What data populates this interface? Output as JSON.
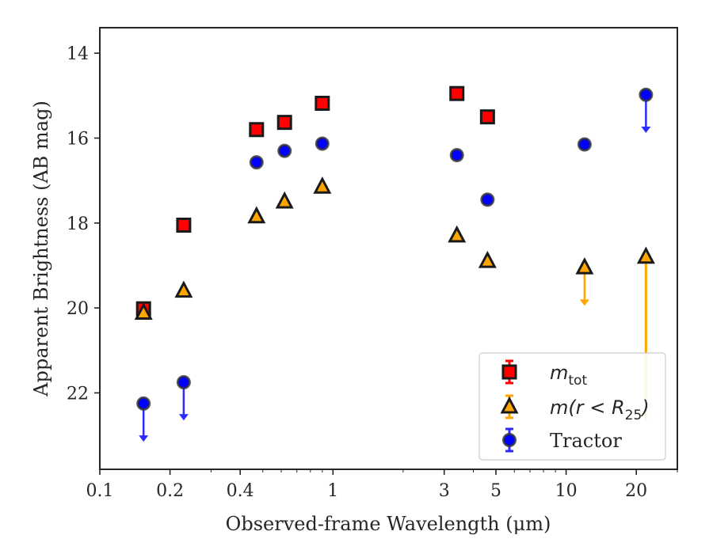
{
  "chart_data": {
    "type": "scatter",
    "title": "",
    "xlabel": "Observed-frame Wavelength (μm)",
    "ylabel": "Apparent Brightness (AB mag)",
    "xscale": "log",
    "xlim": [
      0.1,
      30
    ],
    "ylim": [
      23.8,
      13.4
    ],
    "y_inverted": true,
    "x_ticks": [
      0.1,
      0.2,
      0.4,
      1,
      3,
      5,
      10,
      20
    ],
    "x_tick_labels": [
      "0.1",
      "0.2",
      "0.4",
      "1",
      "3",
      "5",
      "10",
      "20"
    ],
    "y_ticks": [
      14,
      16,
      18,
      20,
      22
    ],
    "y_tick_labels": [
      "14",
      "16",
      "18",
      "20",
      "22"
    ],
    "grid": false,
    "legend_position": "lower-right",
    "series": [
      {
        "name": "m_tot",
        "legend_label": {
          "base": "m",
          "subscript": "tot"
        },
        "marker": "square",
        "color": "#ff0000",
        "edge_color": "#1a1a1a",
        "points": [
          {
            "x": 0.154,
            "y": 20.02
          },
          {
            "x": 0.229,
            "y": 18.05
          },
          {
            "x": 0.47,
            "y": 15.8
          },
          {
            "x": 0.62,
            "y": 15.63
          },
          {
            "x": 0.9,
            "y": 15.18
          },
          {
            "x": 3.4,
            "y": 14.95
          },
          {
            "x": 4.6,
            "y": 15.5
          }
        ]
      },
      {
        "name": "m(r<R25)",
        "legend_label": {
          "base": "m(r < R",
          "subscript": "25",
          "tail": ")"
        },
        "marker": "triangle",
        "color": "#ffa500",
        "edge_color": "#1a1a1a",
        "points": [
          {
            "x": 0.154,
            "y": 20.12
          },
          {
            "x": 0.229,
            "y": 19.6
          },
          {
            "x": 0.47,
            "y": 17.85
          },
          {
            "x": 0.62,
            "y": 17.5
          },
          {
            "x": 0.9,
            "y": 17.15
          },
          {
            "x": 3.4,
            "y": 18.3
          },
          {
            "x": 4.6,
            "y": 18.9
          },
          {
            "x": 12.0,
            "y": 19.05,
            "upper_limit_to": 19.95
          },
          {
            "x": 22.0,
            "y": 18.8,
            "error_bar_to": 22.65
          }
        ]
      },
      {
        "name": "Tractor",
        "legend_label": {
          "base": "Tractor"
        },
        "marker": "circle",
        "color": "#0000ff",
        "edge_color": "#333333",
        "points": [
          {
            "x": 0.154,
            "y": 22.25,
            "upper_limit_to": 23.15
          },
          {
            "x": 0.229,
            "y": 21.75,
            "upper_limit_to": 22.65
          },
          {
            "x": 0.47,
            "y": 16.57
          },
          {
            "x": 0.62,
            "y": 16.3
          },
          {
            "x": 0.9,
            "y": 16.13
          },
          {
            "x": 3.4,
            "y": 16.4
          },
          {
            "x": 4.6,
            "y": 17.45
          },
          {
            "x": 12.0,
            "y": 16.15
          },
          {
            "x": 22.0,
            "y": 14.98,
            "upper_limit_to": 15.88
          }
        ]
      }
    ]
  }
}
